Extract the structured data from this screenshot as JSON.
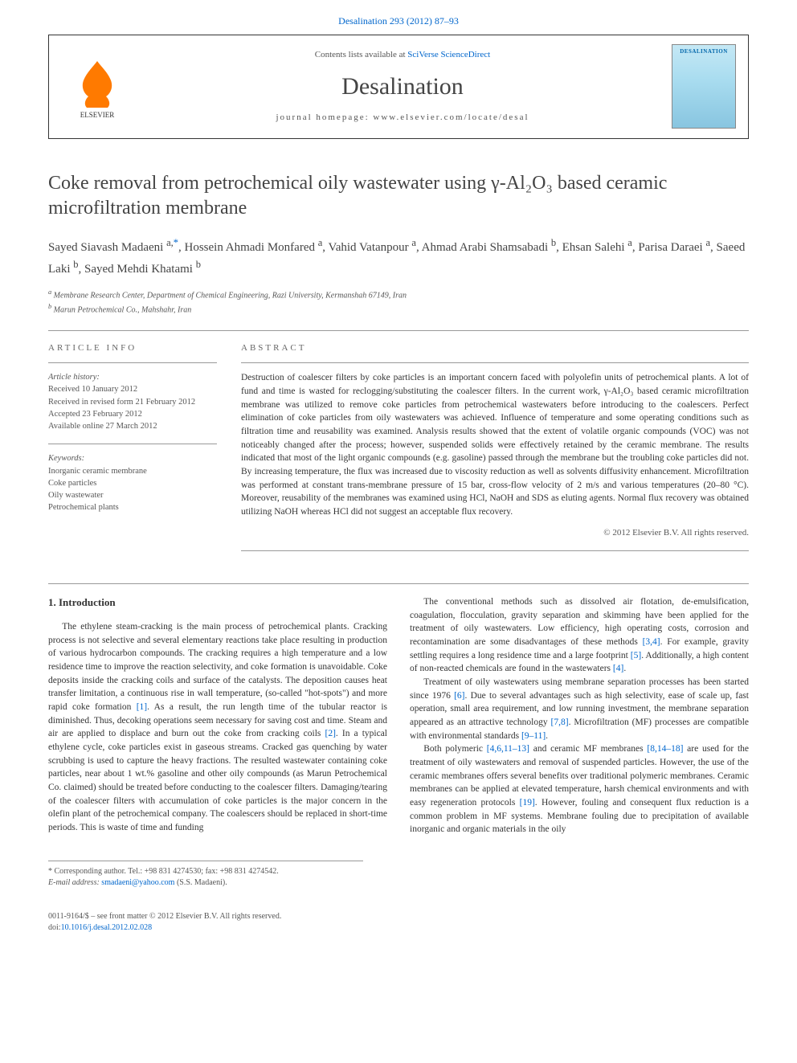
{
  "journal_ref_top": "Desalination 293 (2012) 87–93",
  "header": {
    "contents_prefix": "Contents lists available at ",
    "contents_link": "SciVerse ScienceDirect",
    "journal_name": "Desalination",
    "homepage_prefix": "journal homepage: ",
    "homepage_url": "www.elsevier.com/locate/desal",
    "cover_label": "DESALINATION"
  },
  "title": "Coke removal from petrochemical oily wastewater using γ-Al₂O₃ based ceramic microfiltration membrane",
  "authors_html": "Sayed Siavash Madaeni <sup>a,</sup><sup class=\"sup-star\">*</sup>, Hossein Ahmadi Monfared <sup>a</sup>, Vahid Vatanpour <sup>a</sup>, Ahmad Arabi Shamsabadi <sup>b</sup>, Ehsan Salehi <sup>a</sup>, Parisa Daraei <sup>a</sup>, Saeed Laki <sup>b</sup>, Sayed Mehdi Khatami <sup>b</sup>",
  "affiliations": {
    "a": "Membrane Research Center, Department of Chemical Engineering, Razi University, Kermanshah 67149, Iran",
    "b": "Marun Petrochemical Co., Mahshahr, Iran"
  },
  "article_info": {
    "header": "ARTICLE INFO",
    "history_label": "Article history:",
    "received": "Received 10 January 2012",
    "revised": "Received in revised form 21 February 2012",
    "accepted": "Accepted 23 February 2012",
    "online": "Available online 27 March 2012",
    "keywords_label": "Keywords:",
    "keywords": [
      "Inorganic ceramic membrane",
      "Coke particles",
      "Oily wastewater",
      "Petrochemical plants"
    ]
  },
  "abstract": {
    "header": "ABSTRACT",
    "text": "Destruction of coalescer filters by coke particles is an important concern faced with polyolefin units of petrochemical plants. A lot of fund and time is wasted for reclogging/substituting the coalescer filters. In the current work, γ-Al₂O₃ based ceramic microfiltration membrane was utilized to remove coke particles from petrochemical wastewaters before introducing to the coalescers. Perfect elimination of coke particles from oily wastewaters was achieved. Influence of temperature and some operating conditions such as filtration time and reusability was examined. Analysis results showed that the extent of volatile organic compounds (VOC) was not noticeably changed after the process; however, suspended solids were effectively retained by the ceramic membrane. The results indicated that most of the light organic compounds (e.g. gasoline) passed through the membrane but the troubling coke particles did not. By increasing temperature, the flux was increased due to viscosity reduction as well as solvents diffusivity enhancement. Microfiltration was performed at constant trans-membrane pressure of 15 bar, cross-flow velocity of 2 m/s and various temperatures (20–80 °C). Moreover, reusability of the membranes was examined using HCl, NaOH and SDS as eluting agents. Normal flux recovery was obtained utilizing NaOH whereas HCl did not suggest an acceptable flux recovery.",
    "copyright": "© 2012 Elsevier B.V. All rights reserved."
  },
  "intro": {
    "heading": "1. Introduction",
    "p1": "The ethylene steam-cracking is the main process of petrochemical plants. Cracking process is not selective and several elementary reactions take place resulting in production of various hydrocarbon compounds. The cracking requires a high temperature and a low residence time to improve the reaction selectivity, and coke formation is unavoidable. Coke deposits inside the cracking coils and surface of the catalysts. The deposition causes heat transfer limitation, a continuous rise in wall temperature, (so-called \"hot-spots\") and more rapid coke formation ",
    "ref1": "[1]",
    "p1b": ". As a result, the run length time of the tubular reactor is diminished. Thus, decoking operations seem necessary for saving cost and time. Steam and air are applied to displace and burn out the coke from cracking coils ",
    "ref2": "[2]",
    "p1c": ". In a typical ethylene cycle, coke particles exist in gaseous streams. Cracked gas quenching by water scrubbing is used to capture the heavy fractions. The resulted wastewater containing coke particles, near about 1 wt.% gasoline and other oily compounds (as Marun Petrochemical Co. claimed) should be treated before conducting to the coalescer filters. Damaging/tearing of the coalescer filters with accumulation of coke ",
    "p2": "particles is the major concern in the olefin plant of the petrochemical company. The coalescers should be replaced in short-time periods. This is waste of time and funding",
    "p3a": "The conventional methods such as dissolved air flotation, de-emulsification, coagulation, flocculation, gravity separation and skimming have been applied for the treatment of oily wastewaters. Low efficiency, high operating costs, corrosion and recontamination are some disadvantages of these methods ",
    "ref34": "[3,4]",
    "p3b": ". For example, gravity settling requires a long residence time and a large footprint ",
    "ref5": "[5]",
    "p3c": ". Additionally, a high content of non-reacted chemicals are found in the wastewaters ",
    "ref4": "[4]",
    "p3d": ".",
    "p4a": "Treatment of oily wastewaters using membrane separation processes has been started since 1976 ",
    "ref6": "[6]",
    "p4b": ". Due to several advantages such as high selectivity, ease of scale up, fast operation, small area requirement, and low running investment, the membrane separation appeared as an attractive technology ",
    "ref78": "[7,8]",
    "p4c": ". Microfiltration (MF) processes are compatible with environmental standards ",
    "ref911": "[9–11]",
    "p4d": ".",
    "p5a": "Both polymeric ",
    "ref4611": "[4,6,11–13]",
    "p5b": " and ceramic MF membranes ",
    "ref814": "[8,14–18]",
    "p5c": " are used for the treatment of oily wastewaters and removal of suspended particles. However, the use of the ceramic membranes offers several benefits over traditional polymeric membranes. Ceramic membranes can be applied at elevated temperature, harsh chemical environments and with easy regeneration protocols ",
    "ref19": "[19]",
    "p5d": ". However, fouling and consequent flux reduction is a common problem in MF systems. Membrane fouling due to precipitation of available inorganic and organic materials in the oily"
  },
  "footnote": {
    "corr": "* Corresponding author. Tel.: +98 831 4274530; fax: +98 831 4274542.",
    "email_label": "E-mail address: ",
    "email": "smadaeni@yahoo.com",
    "email_suffix": " (S.S. Madaeni)."
  },
  "bottom": {
    "issn": "0011-9164/$ – see front matter © 2012 Elsevier B.V. All rights reserved.",
    "doi_label": "doi:",
    "doi": "10.1016/j.desal.2012.02.028"
  },
  "colors": {
    "link": "#0066cc",
    "text": "#333333",
    "muted": "#555555",
    "elsevier_orange": "#ff7a00"
  }
}
